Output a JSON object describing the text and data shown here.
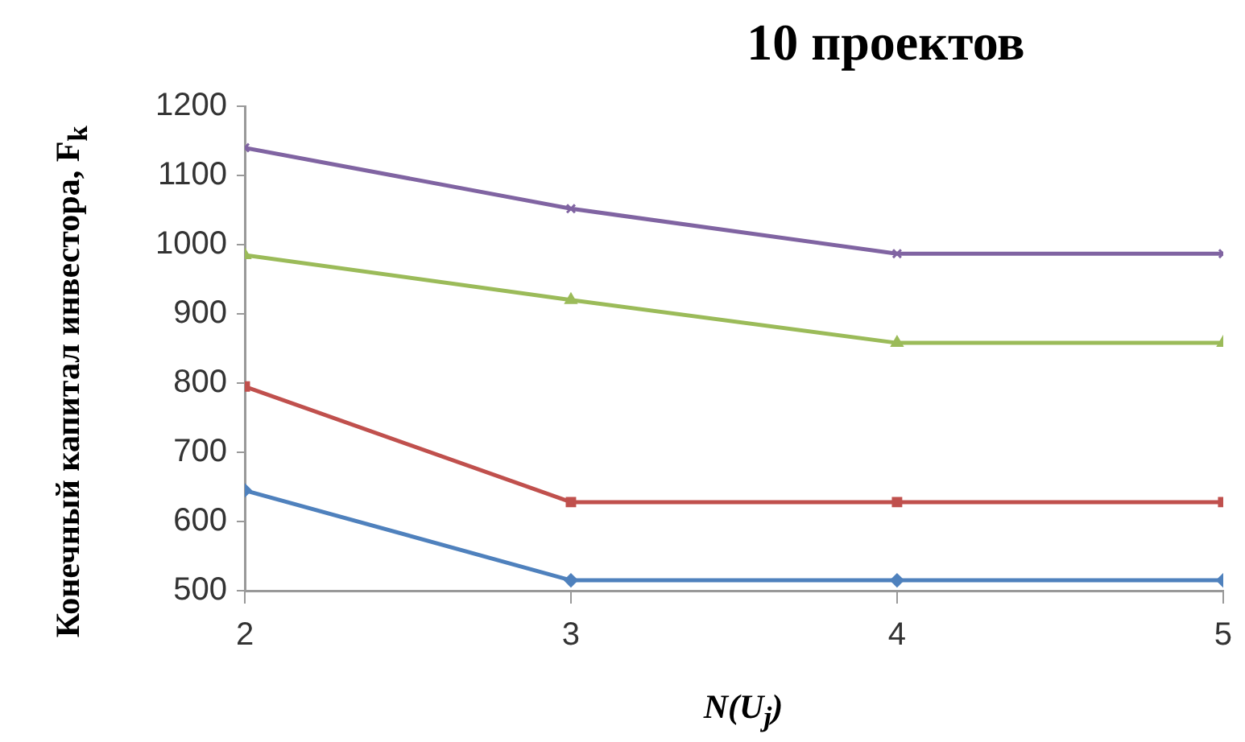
{
  "chart_data": {
    "type": "line",
    "title": "10 проектов",
    "xlabel": "N(U$_{j}$)",
    "ylabel": "Конечный капитал инвестора, F$_{k}$",
    "x": [
      2,
      3,
      4,
      5
    ],
    "xlim": [
      2,
      5
    ],
    "xticks": [
      2,
      3,
      4,
      5
    ],
    "ylim": [
      500,
      1200
    ],
    "yticks": [
      500,
      600,
      700,
      800,
      900,
      1000,
      1100,
      1200
    ],
    "grid": false,
    "legend": false,
    "line_style": "solid",
    "series": [
      {
        "color": "#4f81bd",
        "marker": "diamond",
        "values": [
          645,
          515,
          515,
          515
        ]
      },
      {
        "color": "#c0504d",
        "marker": "square",
        "values": [
          795,
          628,
          628,
          628
        ]
      },
      {
        "color": "#9bbb59",
        "marker": "triangle",
        "values": [
          985,
          920,
          858,
          858
        ]
      },
      {
        "color": "#8064a2",
        "marker": "cross",
        "values": [
          1140,
          1052,
          987,
          987
        ]
      }
    ]
  }
}
